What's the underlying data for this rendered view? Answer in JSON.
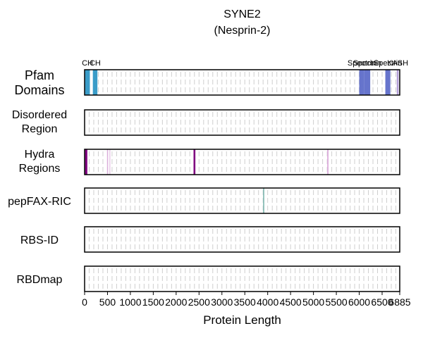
{
  "chart_data": {
    "type": "track",
    "title": "SYNE2",
    "subtitle": "(Nesprin-2)",
    "xlabel": "Protein Length",
    "protein_length": 6885,
    "xlim": [
      0,
      6885
    ],
    "x_ticks": [
      0,
      500,
      1000,
      1500,
      2000,
      2500,
      3000,
      3500,
      4000,
      4500,
      5000,
      5500,
      6000,
      6500,
      6885
    ],
    "grid": true,
    "tracks": [
      {
        "name": "Pfam\nDomains",
        "label_lines": [
          "Pfam",
          "Domains"
        ],
        "features": [
          {
            "label": "CH",
            "start": 10,
            "end": 115,
            "color": "#3a9cc8"
          },
          {
            "label": "CH",
            "start": 180,
            "end": 280,
            "color": "#3a9cc8"
          },
          {
            "label": "Spectrin",
            "start": 6000,
            "end": 6110,
            "color": "#6674cc"
          },
          {
            "label": "Spectrin",
            "start": 6110,
            "end": 6240,
            "color": "#6674cc"
          },
          {
            "label": "Spectrin",
            "start": 6570,
            "end": 6680,
            "color": "#6674cc"
          },
          {
            "label": "KASH",
            "start": 6820,
            "end": 6860,
            "color": "#b5a0d8"
          }
        ]
      },
      {
        "name": "Disordered\nRegion",
        "label_lines": [
          "Disordered",
          "Region"
        ],
        "features": []
      },
      {
        "name": "Hydra\nRegions",
        "label_lines": [
          "Hydra",
          "Regions"
        ],
        "features": [
          {
            "start": 10,
            "end": 60,
            "color": "#800080",
            "opacity": 1.0
          },
          {
            "start": 490,
            "end": 510,
            "color": "#d9a8d9",
            "opacity": 0.9
          },
          {
            "start": 540,
            "end": 560,
            "color": "#e3bfe3",
            "opacity": 0.8
          },
          {
            "start": 2380,
            "end": 2420,
            "color": "#800080",
            "opacity": 1.0
          },
          {
            "start": 5300,
            "end": 5330,
            "color": "#dca9dc",
            "opacity": 0.9
          }
        ]
      },
      {
        "name": "pepFAX-RIC",
        "label_lines": [
          "pepFAX-RIC"
        ],
        "features": [
          {
            "start": 3900,
            "end": 3925,
            "color": "#7fb8b0",
            "opacity": 1.0
          }
        ]
      },
      {
        "name": "RBS-ID",
        "label_lines": [
          "RBS-ID"
        ],
        "features": []
      },
      {
        "name": "RBDmap",
        "label_lines": [
          "RBDmap"
        ],
        "features": []
      }
    ]
  }
}
